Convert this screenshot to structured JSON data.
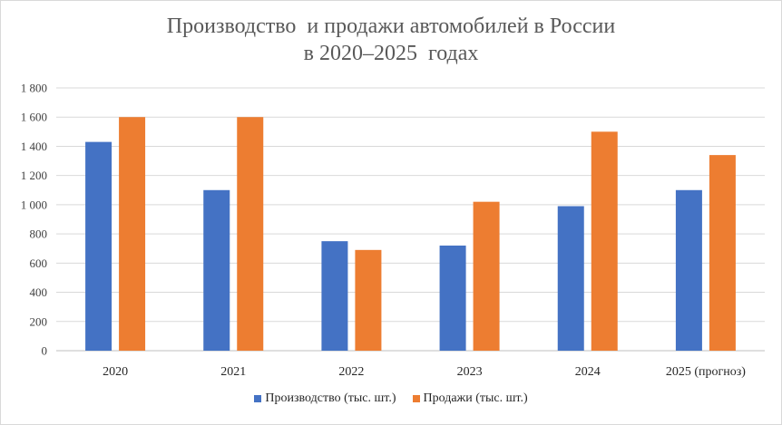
{
  "chart_data": {
    "type": "bar",
    "title_line1": "Производство  и продажи автомобилей в России",
    "title_line2": "в 2020–2025  годах",
    "categories": [
      "2020",
      "2021",
      "2022",
      "2023",
      "2024",
      "2025 (прогноз)"
    ],
    "series": [
      {
        "name": "Производство (тыс. шт.)",
        "color": "#4472C4",
        "values": [
          1430,
          1100,
          750,
          720,
          990,
          1100
        ]
      },
      {
        "name": "Продажи (тыс. шт.)",
        "color": "#ED7D31",
        "values": [
          1600,
          1600,
          690,
          1020,
          1500,
          1340
        ]
      }
    ],
    "ylim": [
      0,
      1800
    ],
    "ytick_labels": [
      "0",
      "200",
      "400",
      "600",
      "800",
      "1 000",
      "1 200",
      "1 400",
      "1 600",
      "1 800"
    ],
    "grid": true,
    "legend_position": "bottom"
  }
}
